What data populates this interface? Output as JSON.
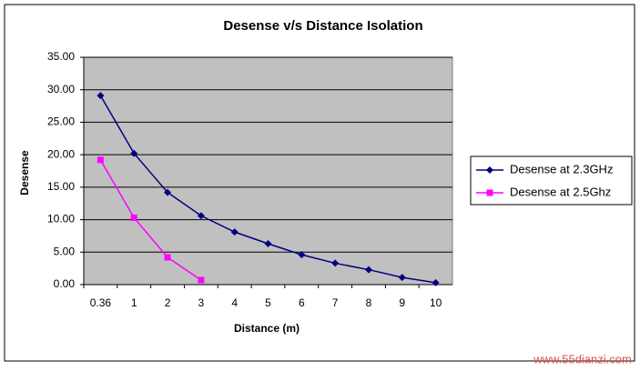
{
  "chart_data": {
    "type": "line",
    "title": "Desense v/s Distance Isolation",
    "x_label": "Distance (m)",
    "y_label": "Desense",
    "categories": [
      "0.36",
      "1",
      "2",
      "3",
      "4",
      "5",
      "6",
      "7",
      "8",
      "9",
      "10"
    ],
    "series": [
      {
        "name": "Desense at 2.3GHz",
        "color": "#000080",
        "marker": "diamond",
        "values": [
          29.1,
          20.2,
          14.2,
          10.6,
          8.1,
          6.3,
          4.6,
          3.3,
          2.3,
          1.1,
          0.3
        ]
      },
      {
        "name": "Desense at 2.5Ghz",
        "color": "#ff00ff",
        "marker": "square",
        "values": [
          19.2,
          10.3,
          4.2,
          0.7,
          null,
          null,
          null,
          null,
          null,
          null,
          null
        ]
      }
    ],
    "ylim": [
      0,
      35
    ],
    "yticks": [
      {
        "value": 0,
        "label": "0.00"
      },
      {
        "value": 5,
        "label": "5.00"
      },
      {
        "value": 10,
        "label": "10.00"
      },
      {
        "value": 15,
        "label": "15.00"
      },
      {
        "value": 20,
        "label": "20.00"
      },
      {
        "value": 25,
        "label": "25.00"
      },
      {
        "value": 30,
        "label": "30.00"
      },
      {
        "value": 35,
        "label": "35.00"
      }
    ],
    "grid": true,
    "legend": "right",
    "watermark": "www.55dianzi.com"
  }
}
